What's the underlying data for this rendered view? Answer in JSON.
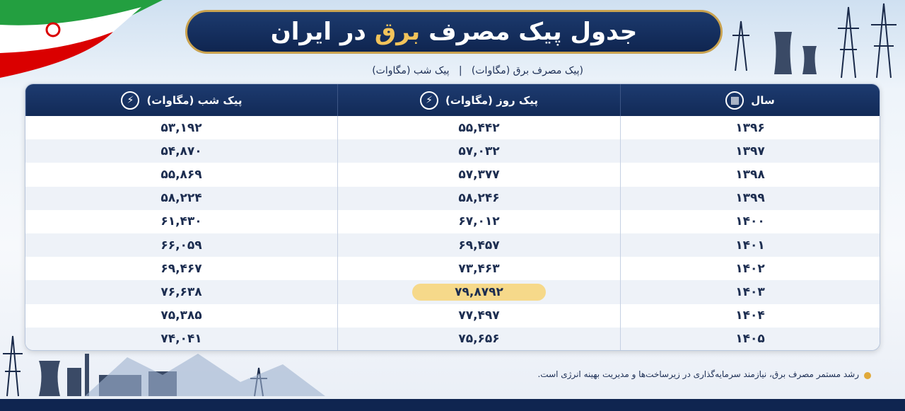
{
  "title": {
    "before": "جدول پیک مصرف",
    "highlight": "برق",
    "after": "در ایران"
  },
  "subtitle": "(پیک مصرف برق (مگاوات)   |   پیک شب (مگاوات)",
  "table": {
    "header": [
      "سال",
      "پیک روز (مگاوات)",
      "پیک شب (مگاوات)"
    ],
    "rows": [
      [
        "۱۳۹۶",
        "۵۵,۴۴۲",
        "۵۳,۱۹۲"
      ],
      [
        "۱۳۹۷",
        "۵۷,۰۳۲",
        "۵۴,۸۷۰"
      ],
      [
        "۱۳۹۸",
        "۵۷,۳۷۷",
        "۵۵,۸۶۹"
      ],
      [
        "۱۳۹۹",
        "۵۸,۲۴۶",
        "۵۸,۲۲۴"
      ],
      [
        "۱۴۰۰",
        "۶۷,۰۱۲",
        "۶۱,۴۳۰"
      ],
      [
        "۱۴۰۱",
        "۶۹,۴۵۷",
        "۶۶,۰۵۹"
      ],
      [
        "۱۴۰۲",
        "۷۳,۴۶۳",
        "۶۹,۴۶۷"
      ],
      [
        "۱۴۰۳",
        "۷۹,۸۷۹۲",
        "۷۶,۶۳۸"
      ],
      [
        "۱۴۰۴",
        "۷۷,۴۹۷",
        "۷۵,۳۸۵"
      ],
      [
        "۱۴۰۵",
        "۷۵,۶۵۶",
        "۷۴,۰۴۱"
      ]
    ]
  },
  "footer": "رشد مستمر مصرف برق، نیازمند سرمایه‌گذاری در زیرساخت‌ها و مدیریت بهینه انرژی است."
}
